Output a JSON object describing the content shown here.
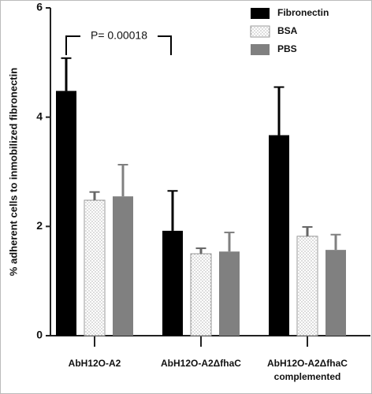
{
  "chart_data": {
    "type": "bar",
    "ylabel": "% adherent cells to inmobilized fibronectin",
    "categories": [
      [
        "AbH12O-A2"
      ],
      [
        "AbH12O-A2ΔfhaC"
      ],
      [
        "AbH12O-A2ΔfhaC",
        "complemented"
      ]
    ],
    "series": [
      {
        "name": "Fibronectin",
        "color": "#000000",
        "values": [
          4.48,
          1.92,
          3.67
        ],
        "errors": [
          0.6,
          0.73,
          0.88
        ]
      },
      {
        "name": "BSA",
        "color": "dotted",
        "values": [
          2.48,
          1.5,
          1.82
        ],
        "errors": [
          0.15,
          0.1,
          0.17
        ]
      },
      {
        "name": "PBS",
        "color": "#808080",
        "values": [
          2.55,
          1.54,
          1.57
        ],
        "errors": [
          0.58,
          0.35,
          0.28
        ]
      }
    ],
    "ylim": [
      0,
      6
    ],
    "yticks": [
      0,
      2,
      4,
      6
    ],
    "annotation": "P= 0.00018",
    "legend": "top-right"
  }
}
